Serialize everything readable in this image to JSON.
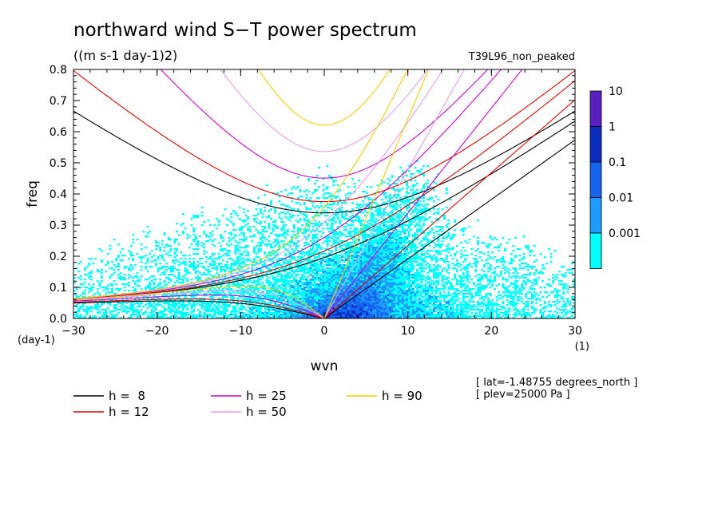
{
  "chart_data": {
    "type": "heatmap",
    "title": "northward wind S−T power spectrum",
    "units": "((m s-1 day-1)2)",
    "run_label": "T39L96_non_peaked",
    "xlabel": "wvn",
    "ylabel": "freq",
    "x_unit": "(1)",
    "y_unit": "(day-1)",
    "xlim": [
      -30,
      30
    ],
    "ylim": [
      0,
      0.8
    ],
    "x_ticks": [
      -30,
      -20,
      -10,
      0,
      10,
      20,
      30
    ],
    "y_ticks": [
      0.0,
      0.1,
      0.2,
      0.3,
      0.4,
      0.5,
      0.6,
      0.7,
      0.8
    ],
    "x_tick_labels": [
      "−30",
      "−20",
      "−10",
      "0",
      "10",
      "20",
      "30"
    ],
    "y_tick_labels": [
      "0.0",
      "0.1",
      "0.2",
      "0.3",
      "0.4",
      "0.5",
      "0.6",
      "0.7",
      "0.8"
    ],
    "colorbar": {
      "levels": [
        "10",
        "1",
        "0.1",
        "0.01",
        "0.001"
      ],
      "colors": [
        "#5a1fbf",
        "#0a2dbf",
        "#1464f0",
        "#1e9bff",
        "#00ffff"
      ]
    },
    "dispersion_curves": [
      {
        "name": "h =  8",
        "h": 8,
        "color": "#000000"
      },
      {
        "name": "h = 12",
        "h": 12,
        "color": "#e00000"
      },
      {
        "name": "h = 25",
        "h": 25,
        "color": "#d000d0"
      },
      {
        "name": "h = 50",
        "h": 50,
        "color": "#e6a0e6"
      },
      {
        "name": "h = 90",
        "h": 90,
        "color": "#f0d000"
      }
    ],
    "annotations": [
      "[ lat=-1.48755 degrees_north ]",
      "[ plev=25000 Pa ]"
    ]
  }
}
